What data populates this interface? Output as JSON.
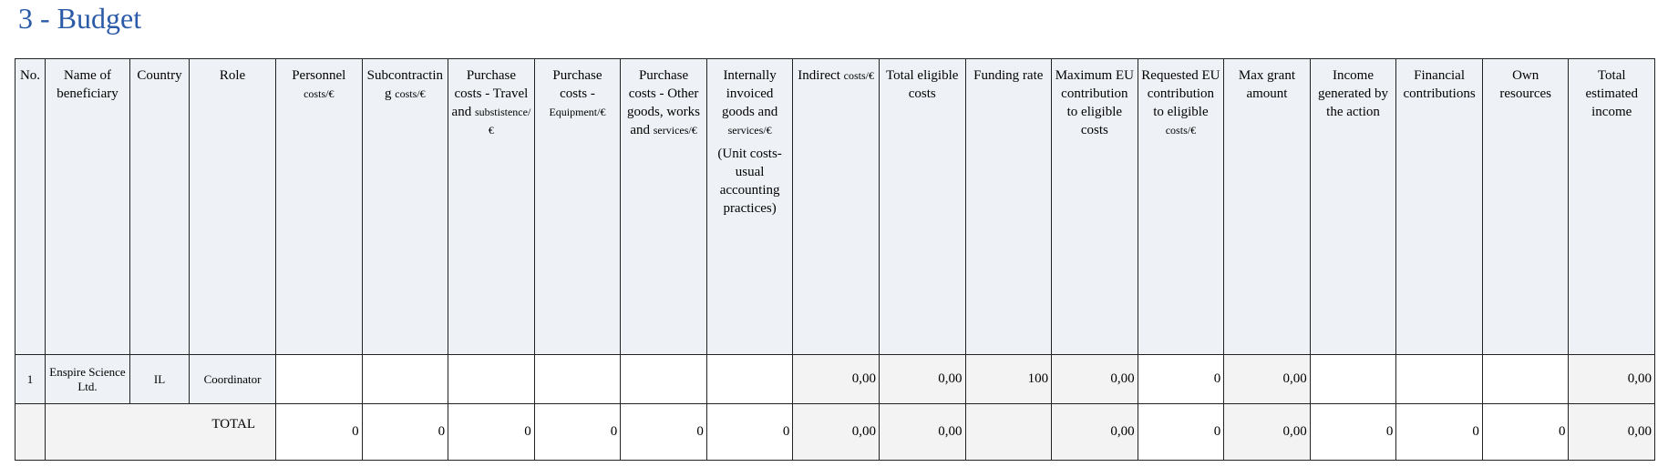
{
  "title": "3 - Budget",
  "table": {
    "headers": [
      {
        "label": "No."
      },
      {
        "label": "Name of beneficiary"
      },
      {
        "label": "Country"
      },
      {
        "label": "Role"
      },
      {
        "label": "Personnel",
        "unit": "costs/€"
      },
      {
        "label": "Subcontracting",
        "unit": "costs/€"
      },
      {
        "label": "Purchase costs - Travel and",
        "unit": "substistence/€"
      },
      {
        "label": "Purchase costs -",
        "unit": "Equipment/€"
      },
      {
        "label": "Purchase costs - Other goods, works and",
        "unit": "services/€"
      },
      {
        "label": "Internally invoiced goods and",
        "unit": "services/€",
        "note": "(Unit costs-usual accounting practices)"
      },
      {
        "label": "Indirect",
        "unit": "costs/€"
      },
      {
        "label": "Total eligible costs"
      },
      {
        "label": "Funding  rate"
      },
      {
        "label": "Maximum EU contribution to eligible costs"
      },
      {
        "label": "Requested EU contribution to eligible",
        "unit": "costs/€"
      },
      {
        "label": "Max grant amount"
      },
      {
        "label": "Income generated by the action"
      },
      {
        "label": "Financial contributions"
      },
      {
        "label": "Own resources"
      },
      {
        "label": "Total estimated income"
      }
    ],
    "rows": [
      [
        "1",
        "Enspire Science Ltd.",
        "IL",
        "Coordinator",
        null,
        null,
        null,
        null,
        null,
        null,
        "0,00",
        "0,00",
        "100",
        "0,00",
        "0",
        "0,00",
        null,
        null,
        null,
        "0,00"
      ]
    ],
    "total": {
      "label": "TOTAL",
      "values": [
        "0",
        "0",
        "0",
        "0",
        "0",
        "0",
        "0,00",
        "0,00",
        null,
        "0,00",
        "0",
        "0,00",
        "0",
        "0",
        "0",
        "0,00"
      ]
    }
  }
}
